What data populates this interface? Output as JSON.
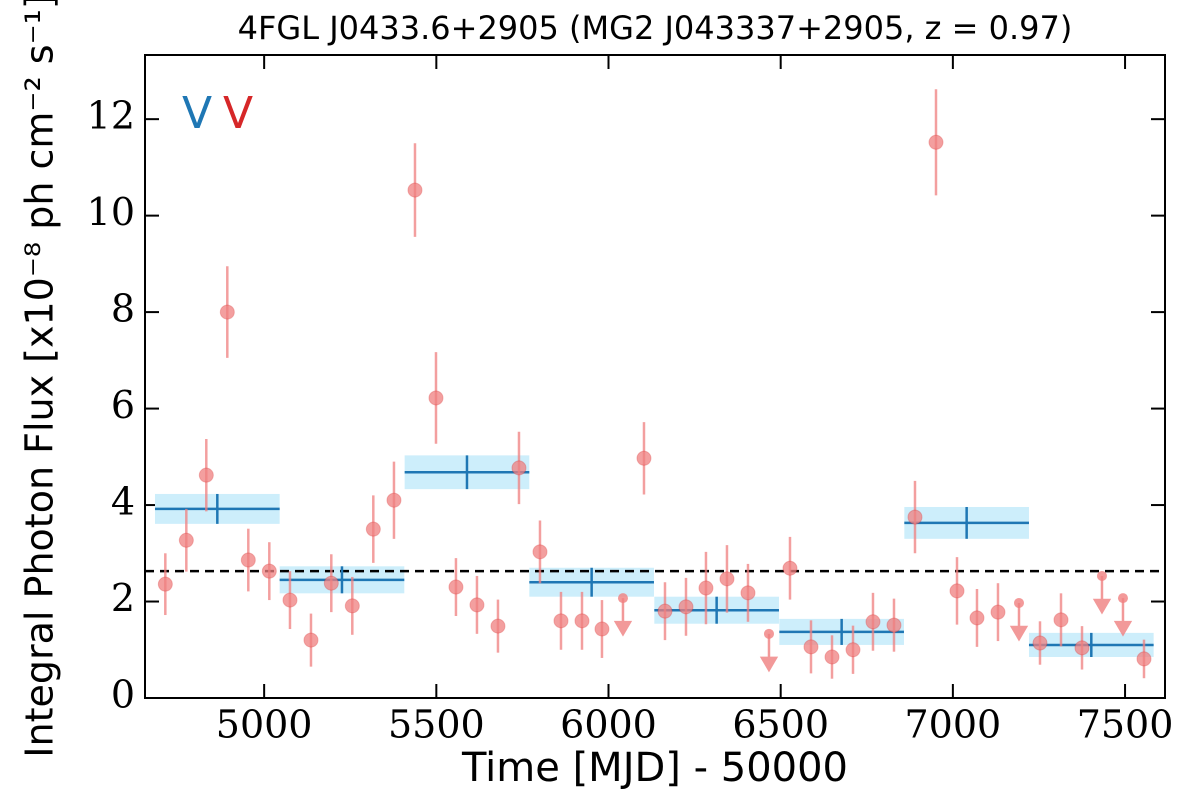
{
  "chart_data": {
    "type": "lightcurve",
    "title": "4FGL J0433.6+2905 (MG2 J043337+2905, z = 0.97)",
    "x_label": "Time [MJD] - 50000",
    "y_label": "Integral Photon Flux [x10⁻⁸ ph cm⁻² s⁻¹]",
    "xlim": [
      4654,
      7616
    ],
    "ylim": [
      0,
      13.33
    ],
    "xticks": [
      5000,
      5500,
      6000,
      6500,
      7000,
      7500
    ],
    "yticks": [
      0,
      2,
      4,
      6,
      8,
      10,
      12
    ],
    "reference_line": 2.63,
    "series": [
      {
        "name": "V",
        "color": "#1f77b4",
        "band_color": "#cdeefb",
        "x": [
          4864,
          5226,
          5589,
          5951,
          6314,
          6677,
          7040,
          7402
        ],
        "xerr": [
          181,
          181,
          181,
          181,
          181,
          181,
          181,
          181
        ],
        "values": [
          3.92,
          2.45,
          4.68,
          2.4,
          1.82,
          1.37,
          3.63,
          1.1
        ],
        "yerr": [
          0.31,
          0.28,
          0.35,
          0.3,
          0.28,
          0.27,
          0.33,
          0.25
        ]
      },
      {
        "name": "V",
        "color": "#d62728",
        "point_color": "#f08080",
        "x": [
          4713,
          4774,
          4832,
          4893,
          4954,
          5015,
          5075,
          5136,
          5195,
          5256,
          5317,
          5377,
          5438,
          5499,
          5557,
          5618,
          5679,
          5740,
          5801,
          5862,
          5923,
          5981,
          6042,
          6103,
          6164,
          6225,
          6283,
          6344,
          6405,
          6466,
          6527,
          6588,
          6649,
          6710,
          6768,
          6829,
          6890,
          6951,
          7012,
          7070,
          7131,
          7192,
          7253,
          7314,
          7375,
          7433,
          7494,
          7555
        ],
        "values": [
          2.36,
          3.27,
          4.62,
          8.0,
          2.86,
          2.63,
          2.03,
          1.2,
          2.38,
          1.91,
          3.5,
          4.1,
          10.53,
          6.22,
          2.3,
          1.93,
          1.49,
          4.77,
          3.03,
          1.6,
          1.6,
          1.43,
          2.07,
          4.97,
          1.8,
          1.89,
          2.28,
          2.47,
          2.18,
          1.33,
          2.69,
          1.06,
          0.85,
          1.0,
          1.58,
          1.51,
          3.75,
          11.52,
          2.22,
          1.66,
          1.78,
          1.97,
          1.14,
          1.62,
          1.04,
          2.53,
          2.07,
          0.81
        ],
        "yerr": [
          0.64,
          0.65,
          0.75,
          0.95,
          0.65,
          0.6,
          0.6,
          0.55,
          0.6,
          0.6,
          0.7,
          0.8,
          0.97,
          0.95,
          0.6,
          0.6,
          0.55,
          0.75,
          0.65,
          0.6,
          0.6,
          0.6,
          null,
          0.75,
          0.6,
          0.6,
          0.75,
          0.7,
          0.6,
          null,
          0.65,
          0.55,
          0.45,
          0.5,
          0.6,
          0.55,
          0.75,
          1.1,
          0.7,
          0.6,
          0.6,
          null,
          0.45,
          0.55,
          0.45,
          null,
          null,
          0.4
        ],
        "upper_limit": [
          false,
          false,
          false,
          false,
          false,
          false,
          false,
          false,
          false,
          false,
          false,
          false,
          false,
          false,
          false,
          false,
          false,
          false,
          false,
          false,
          false,
          false,
          true,
          false,
          false,
          false,
          false,
          false,
          false,
          true,
          false,
          false,
          false,
          false,
          false,
          false,
          false,
          false,
          false,
          false,
          false,
          true,
          false,
          false,
          false,
          true,
          true,
          false
        ]
      }
    ]
  }
}
